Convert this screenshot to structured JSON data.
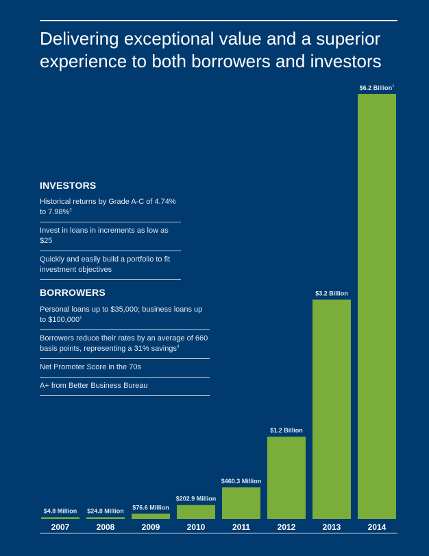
{
  "headline": "Delivering exceptional value and a superior experience to both borrowers and investors",
  "investors": {
    "title": "INVESTORS",
    "items": [
      {
        "text": "Historical returns by Grade A-C of 4.74% to 7.98%",
        "fn": "2"
      },
      {
        "text": "Invest in loans in increments as low as $25",
        "fn": ""
      },
      {
        "text": "Quickly and easily build a portfolio to fit investment objectives",
        "fn": ""
      }
    ]
  },
  "borrowers": {
    "title": "BORROWERS",
    "items": [
      {
        "text": "Personal loans up to $35,000; business loans up to $100,000",
        "fn": "1"
      },
      {
        "text": "Borrowers reduce their rates by an average of 660 basis points, representing a 31% savings",
        "fn": "4"
      },
      {
        "text": "Net Promoter Score in the 70s",
        "fn": ""
      },
      {
        "text": "A+ from Better Business Bureau",
        "fn": ""
      }
    ]
  },
  "colors": {
    "background": "#003a6e",
    "bar": "#7aad3a",
    "text": "#ffffff",
    "label": "#dce9f5"
  },
  "chart_data": {
    "type": "bar",
    "title": "",
    "xlabel": "",
    "ylabel": "",
    "unit": "millions USD",
    "categories": [
      "2007",
      "2008",
      "2009",
      "2010",
      "2011",
      "2012",
      "2013",
      "2014"
    ],
    "values": [
      4.8,
      24.8,
      76.6,
      202.9,
      460.3,
      1200,
      3200,
      6200
    ],
    "labels": [
      "$4.8 Million",
      "$24.8 Million",
      "$76.6 Million",
      "$202.9 Million",
      "$460.3 Million",
      "$1.2 Billion",
      "$3.2 Billion",
      "$6.2 Billion"
    ],
    "label_footnotes": [
      "",
      "",
      "",
      "",
      "",
      "",
      "",
      "1"
    ],
    "ylim": [
      0,
      6200
    ],
    "grid": false,
    "legend": "none"
  }
}
